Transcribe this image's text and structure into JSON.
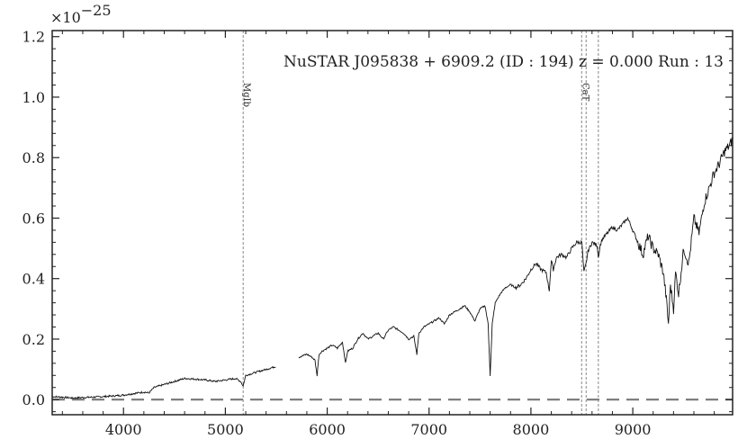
{
  "chart_data": {
    "type": "line",
    "title": "NuSTAR J095838 + 6909.2 (ID : 194)   z = 0.000   Run : 13",
    "xlabel": "",
    "ylabel": "",
    "y_multiplier_label": "×10",
    "y_multiplier_exponent": "−25",
    "xlim": [
      3300,
      9980
    ],
    "ylim": [
      -0.05,
      1.22
    ],
    "x_ticks": [
      4000,
      5000,
      6000,
      7000,
      8000,
      9000
    ],
    "x_tick_labels": [
      "4000",
      "5000",
      "6000",
      "7000",
      "8000",
      "9000"
    ],
    "y_ticks": [
      0.0,
      0.2,
      0.4,
      0.6,
      0.8,
      1.0,
      1.2
    ],
    "y_tick_labels": [
      "0.0",
      "0.2",
      "0.4",
      "0.6",
      "0.8",
      "1.0",
      "1.2"
    ],
    "zero_line": 0.0,
    "grid": false,
    "line_markers": [
      {
        "label": "MgIb",
        "x": [
          5175
        ]
      },
      {
        "label": "CaT",
        "x": [
          8498,
          8542,
          8662
        ]
      }
    ],
    "gap": [
      5500,
      5720
    ],
    "series": [
      {
        "x": [
          3300,
          3400,
          3500,
          3600,
          3700,
          3800,
          3900,
          4000,
          4100,
          4200,
          4250,
          4300,
          4400,
          4500,
          4600,
          4700,
          4800,
          4900,
          5000,
          5100,
          5150,
          5175,
          5200,
          5250,
          5300,
          5400,
          5500,
          5720,
          5800,
          5850,
          5880,
          5900,
          5920,
          5950,
          6000,
          6050,
          6100,
          6150,
          6180,
          6200,
          6250,
          6300,
          6350,
          6400,
          6450,
          6500,
          6550,
          6600,
          6650,
          6700,
          6750,
          6800,
          6850,
          6880,
          6900,
          6950,
          7000,
          7050,
          7100,
          7150,
          7200,
          7250,
          7300,
          7350,
          7400,
          7450,
          7500,
          7550,
          7580,
          7600,
          7620,
          7650,
          7700,
          7750,
          7800,
          7850,
          7900,
          7950,
          8000,
          8050,
          8100,
          8150,
          8180,
          8200,
          8220,
          8250,
          8300,
          8350,
          8400,
          8450,
          8500,
          8520,
          8542,
          8560,
          8600,
          8650,
          8662,
          8680,
          8700,
          8750,
          8800,
          8850,
          8900,
          8950,
          9000,
          9050,
          9100,
          9150,
          9200,
          9250,
          9300,
          9330,
          9350,
          9370,
          9400,
          9420,
          9450,
          9500,
          9550,
          9600,
          9650,
          9700,
          9750,
          9800,
          9850,
          9900,
          9950,
          9980
        ],
        "y": [
          0.01,
          0.008,
          0.005,
          0.007,
          0.008,
          0.01,
          0.012,
          0.015,
          0.02,
          0.025,
          0.022,
          0.04,
          0.05,
          0.06,
          0.07,
          0.068,
          0.065,
          0.06,
          0.065,
          0.07,
          0.06,
          0.045,
          0.08,
          0.085,
          0.09,
          0.1,
          0.11,
          0.14,
          0.15,
          0.14,
          0.13,
          0.08,
          0.15,
          0.16,
          0.17,
          0.18,
          0.17,
          0.19,
          0.12,
          0.16,
          0.17,
          0.2,
          0.22,
          0.2,
          0.21,
          0.22,
          0.2,
          0.23,
          0.24,
          0.23,
          0.22,
          0.2,
          0.21,
          0.15,
          0.22,
          0.24,
          0.25,
          0.26,
          0.27,
          0.25,
          0.28,
          0.29,
          0.3,
          0.31,
          0.29,
          0.26,
          0.3,
          0.31,
          0.25,
          0.08,
          0.25,
          0.32,
          0.35,
          0.37,
          0.38,
          0.37,
          0.38,
          0.4,
          0.43,
          0.45,
          0.43,
          0.42,
          0.36,
          0.46,
          0.43,
          0.47,
          0.48,
          0.47,
          0.5,
          0.52,
          0.52,
          0.42,
          0.45,
          0.49,
          0.52,
          0.51,
          0.47,
          0.51,
          0.53,
          0.55,
          0.57,
          0.56,
          0.58,
          0.6,
          0.56,
          0.52,
          0.48,
          0.54,
          0.5,
          0.48,
          0.42,
          0.33,
          0.25,
          0.38,
          0.3,
          0.42,
          0.35,
          0.5,
          0.45,
          0.6,
          0.55,
          0.65,
          0.7,
          0.75,
          0.78,
          0.82,
          0.84,
          0.86
        ]
      }
    ]
  }
}
